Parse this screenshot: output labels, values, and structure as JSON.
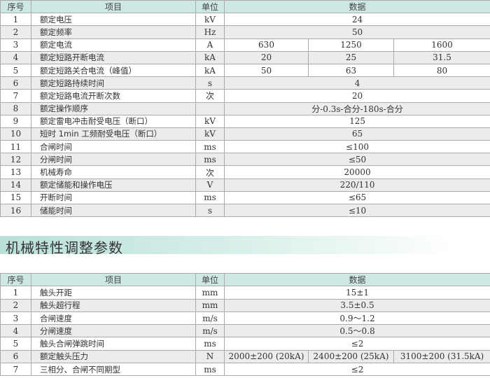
{
  "table1": {
    "headers": [
      "序号",
      "项目",
      "单位",
      "数据"
    ],
    "rows": [
      {
        "no": "1",
        "item": "额定电压",
        "unit": "kV",
        "data": [
          "24"
        ]
      },
      {
        "no": "2",
        "item": "额定频率",
        "unit": "Hz",
        "data": [
          "50"
        ]
      },
      {
        "no": "3",
        "item": "额定电流",
        "unit": "A",
        "data": [
          "630",
          "1250",
          "1600"
        ]
      },
      {
        "no": "4",
        "item": "额定短路开断电流",
        "unit": "kA",
        "data": [
          "20",
          "25",
          "31.5"
        ]
      },
      {
        "no": "5",
        "item": "额定短路关合电流（峰值）",
        "unit": "kA",
        "data": [
          "50",
          "63",
          "80"
        ]
      },
      {
        "no": "6",
        "item": "额定短路持续时间",
        "unit": "s",
        "data": [
          "4"
        ]
      },
      {
        "no": "7",
        "item": "额定短路电流开断次数",
        "unit": "次",
        "data": [
          "20"
        ]
      },
      {
        "no": "8",
        "item": "额定操作顺序",
        "unit": "",
        "data": [
          "分-0.3s-合分-180s-合分"
        ]
      },
      {
        "no": "9",
        "item": "额定雷电冲击耐受电压（断口）",
        "unit": "kV",
        "data": [
          "125"
        ]
      },
      {
        "no": "10",
        "item": "短时 1min 工频耐受电压（断口）",
        "unit": "kV",
        "data": [
          "65"
        ]
      },
      {
        "no": "11",
        "item": "合闸时间",
        "unit": "ms",
        "data": [
          "≤100"
        ]
      },
      {
        "no": "12",
        "item": "分闸时间",
        "unit": "ms",
        "data": [
          "≤50"
        ]
      },
      {
        "no": "13",
        "item": "机械寿命",
        "unit": "次",
        "data": [
          "20000"
        ]
      },
      {
        "no": "14",
        "item": "额定储能和操作电压",
        "unit": "V",
        "data": [
          "220/110"
        ]
      },
      {
        "no": "15",
        "item": "开断时间",
        "unit": "ms",
        "data": [
          "≤65"
        ]
      },
      {
        "no": "16",
        "item": "储能时间",
        "unit": "s",
        "data": [
          "≤10"
        ]
      }
    ]
  },
  "section_title": "机械特性调整参数",
  "table2": {
    "headers": [
      "序号",
      "项目",
      "单位",
      "数据"
    ],
    "rows": [
      {
        "no": "1",
        "item": "触头开距",
        "unit": "mm",
        "data": [
          "15±1"
        ]
      },
      {
        "no": "2",
        "item": "触头超行程",
        "unit": "mm",
        "data": [
          "3.5±0.5"
        ]
      },
      {
        "no": "3",
        "item": "合闸速度",
        "unit": "m/s",
        "data": [
          "0.9～1.2"
        ]
      },
      {
        "no": "4",
        "item": "分闸速度",
        "unit": "m/s",
        "data": [
          "0.5～0.8"
        ]
      },
      {
        "no": "5",
        "item": "触头合闸弹跳时间",
        "unit": "ms",
        "data": [
          "≤2"
        ]
      },
      {
        "no": "6",
        "item": "额定触头压力",
        "unit": "N",
        "data": [
          "2000±200 (20kA)",
          "2400±200 (25kA)",
          "3100±200 (31.5kA)"
        ]
      },
      {
        "no": "7",
        "item": "三相分、合闸不同期型",
        "unit": "ms",
        "data": [
          "≤2"
        ]
      }
    ]
  }
}
